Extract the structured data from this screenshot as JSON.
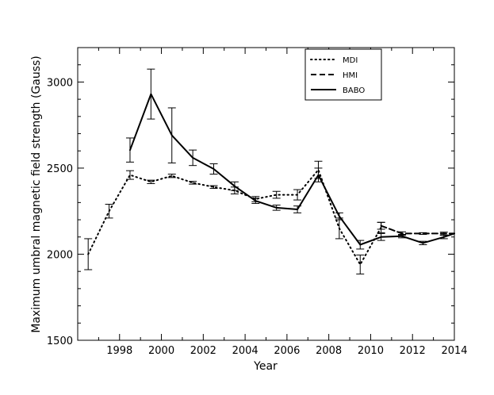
{
  "chart_data": {
    "type": "line",
    "xlabel": "Year",
    "ylabel": "Maximum umbral magnetic field strength (Gauss)",
    "xlim": [
      1996,
      2014
    ],
    "ylim": [
      1500,
      3200
    ],
    "x_ticks": [
      1998,
      2000,
      2002,
      2004,
      2006,
      2008,
      2010,
      2012,
      2014
    ],
    "x_tick_labels": [
      "1998",
      "2000",
      "2002",
      "2004",
      "2006",
      "2008",
      "2010",
      "2012",
      "2014"
    ],
    "y_ticks": [
      1500,
      2000,
      2500,
      3000
    ],
    "y_tick_labels": [
      "1500",
      "2000",
      "2500",
      "3000"
    ],
    "legend_position": "top-right",
    "colors": {
      "line": "#000000",
      "background": "#ffffff"
    },
    "series": [
      {
        "name": "MDI",
        "style": "dotted",
        "points": [
          {
            "x": 1996.5,
            "y": 2000,
            "err": 90
          },
          {
            "x": 1997.5,
            "y": 2250,
            "err": 40
          },
          {
            "x": 1998.5,
            "y": 2460,
            "err": 25
          },
          {
            "x": 1999.5,
            "y": 2420,
            "err": 10
          },
          {
            "x": 2000.5,
            "y": 2455,
            "err": 10
          },
          {
            "x": 2001.5,
            "y": 2415,
            "err": 8
          },
          {
            "x": 2002.5,
            "y": 2390,
            "err": 8
          },
          {
            "x": 2003.5,
            "y": 2370,
            "err": 20
          },
          {
            "x": 2004.5,
            "y": 2320,
            "err": 15
          },
          {
            "x": 2005.5,
            "y": 2345,
            "err": 20
          },
          {
            "x": 2006.5,
            "y": 2345,
            "err": 30
          },
          {
            "x": 2007.5,
            "y": 2490,
            "err": 50
          },
          {
            "x": 2008.5,
            "y": 2150,
            "err": 60
          },
          {
            "x": 2009.5,
            "y": 1940,
            "err": 55
          },
          {
            "x": 2010.5,
            "y": 2155,
            "err": 30
          }
        ]
      },
      {
        "name": "HMI",
        "style": "dashed",
        "points": [
          {
            "x": 2010.5,
            "y": 2165,
            "err": 20
          },
          {
            "x": 2011.5,
            "y": 2120,
            "err": 10
          },
          {
            "x": 2012.5,
            "y": 2120,
            "err": 5
          },
          {
            "x": 2013.5,
            "y": 2120,
            "err": 8
          },
          {
            "x": 2014.0,
            "y": 2120,
            "err": 0
          }
        ]
      },
      {
        "name": "BABO",
        "style": "solid",
        "points": [
          {
            "x": 1998.5,
            "y": 2605,
            "err": 70
          },
          {
            "x": 1999.5,
            "y": 2930,
            "err": 145
          },
          {
            "x": 2000.5,
            "y": 2690,
            "err": 160
          },
          {
            "x": 2001.5,
            "y": 2560,
            "err": 45
          },
          {
            "x": 2002.5,
            "y": 2495,
            "err": 30
          },
          {
            "x": 2003.5,
            "y": 2395,
            "err": 25
          },
          {
            "x": 2004.5,
            "y": 2310,
            "err": 15
          },
          {
            "x": 2005.5,
            "y": 2270,
            "err": 15
          },
          {
            "x": 2006.5,
            "y": 2260,
            "err": 20
          },
          {
            "x": 2007.5,
            "y": 2460,
            "err": 40
          },
          {
            "x": 2008.5,
            "y": 2220,
            "err": 20
          },
          {
            "x": 2009.5,
            "y": 2055,
            "err": 25
          },
          {
            "x": 2010.5,
            "y": 2100,
            "err": 20
          },
          {
            "x": 2011.5,
            "y": 2105,
            "err": 10
          },
          {
            "x": 2012.5,
            "y": 2065,
            "err": 10
          },
          {
            "x": 2013.5,
            "y": 2100,
            "err": 10
          },
          {
            "x": 2014.0,
            "y": 2120,
            "err": 0
          }
        ]
      }
    ]
  }
}
